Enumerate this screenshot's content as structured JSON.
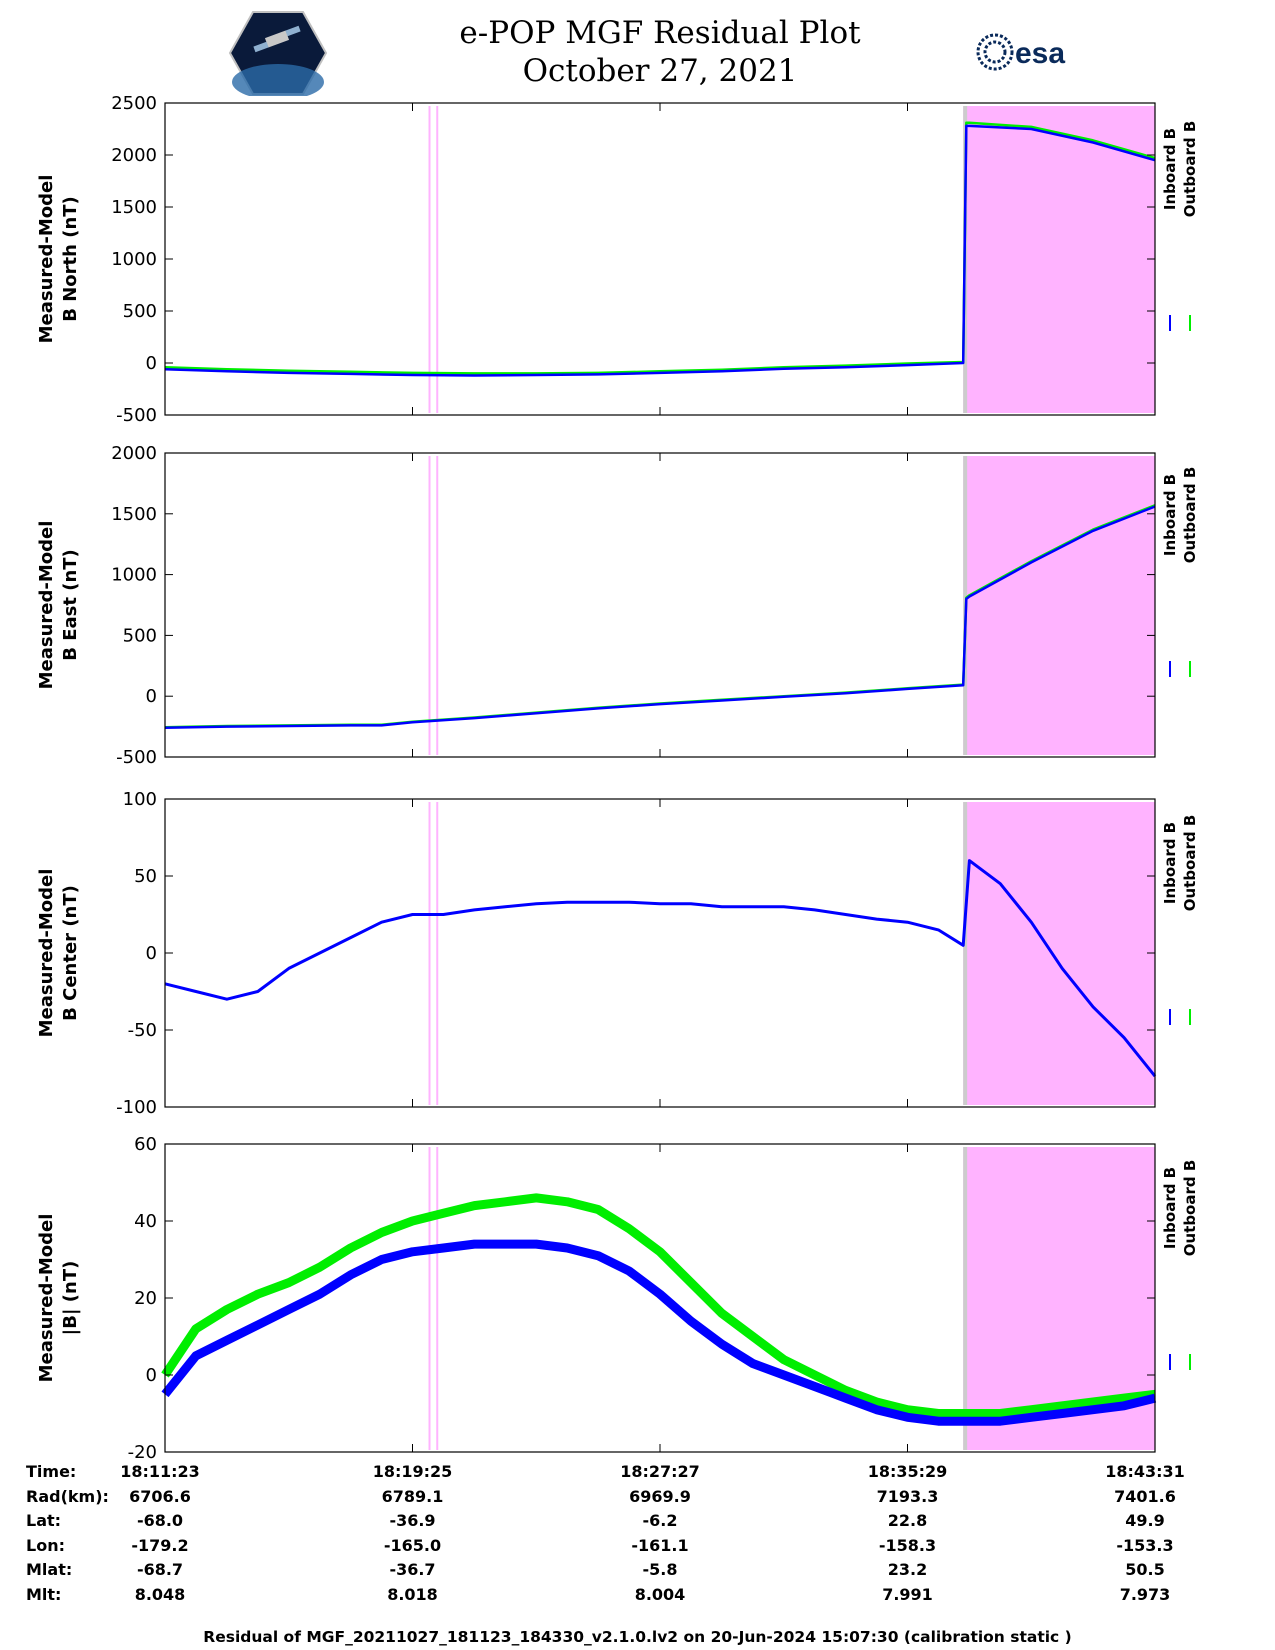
{
  "header": {
    "title": "e-POP MGF Residual Plot",
    "date": "October 27, 2021"
  },
  "logos": {
    "mission": "cassiope-mission-logo",
    "agency": "esa-logo",
    "agency_text": "esa"
  },
  "colors": {
    "inboard": "#0000ff",
    "outboard": "#00ee00",
    "shade": "#ffb3ff",
    "shade_edge": "#cccccc"
  },
  "chart_data": [
    {
      "type": "line",
      "ylabel": [
        "Measured-Model",
        "B North (nT)"
      ],
      "ylim": [
        -500,
        2500
      ],
      "yticks": [
        -500,
        0,
        500,
        1000,
        1500,
        2000,
        2500
      ],
      "legend": [
        "Inboard B",
        "Outboard B"
      ],
      "legend_position": "right",
      "x": [
        0,
        2,
        4,
        6,
        8,
        10,
        12,
        14,
        16,
        18,
        20,
        22,
        24,
        25.8,
        25.9,
        26,
        28,
        30,
        32
      ],
      "series": [
        {
          "name": "Inboard B",
          "values": [
            -60,
            -80,
            -95,
            -105,
            -115,
            -120,
            -115,
            -110,
            -95,
            -80,
            -55,
            -40,
            -20,
            0,
            2280,
            2280,
            2250,
            2120,
            1950
          ]
        },
        {
          "name": "Outboard B",
          "values": [
            -40,
            -60,
            -75,
            -85,
            -95,
            -100,
            -100,
            -95,
            -80,
            -65,
            -40,
            -25,
            -5,
            10,
            2310,
            2310,
            2270,
            2140,
            1970
          ]
        }
      ]
    },
    {
      "type": "line",
      "ylabel": [
        "Measured-Model",
        "B East (nT)"
      ],
      "ylim": [
        -500,
        2000
      ],
      "yticks": [
        -500,
        0,
        500,
        1000,
        1500,
        2000
      ],
      "legend": [
        "Inboard B",
        "Outboard B"
      ],
      "legend_position": "right",
      "x": [
        0,
        2,
        4,
        6,
        7,
        8,
        10,
        12,
        14,
        16,
        18,
        20,
        22,
        24,
        25.8,
        25.9,
        26,
        28,
        30,
        32
      ],
      "series": [
        {
          "name": "Inboard B",
          "values": [
            -260,
            -250,
            -245,
            -240,
            -240,
            -215,
            -180,
            -140,
            -100,
            -65,
            -35,
            -5,
            25,
            60,
            90,
            800,
            820,
            1100,
            1360,
            1560
          ]
        },
        {
          "name": "Outboard B",
          "values": [
            -255,
            -245,
            -240,
            -235,
            -235,
            -210,
            -175,
            -135,
            -95,
            -60,
            -30,
            0,
            30,
            65,
            95,
            810,
            830,
            1110,
            1370,
            1570
          ]
        }
      ]
    },
    {
      "type": "line",
      "ylabel": [
        "Measured-Model",
        "B Center (nT)"
      ],
      "ylim": [
        -100,
        100
      ],
      "yticks": [
        -100,
        -50,
        0,
        50,
        100
      ],
      "legend": [
        "Inboard B",
        "Outboard B"
      ],
      "legend_position": "right",
      "x": [
        0,
        1,
        2,
        3,
        4,
        5,
        6,
        7,
        8,
        9,
        10,
        11,
        12,
        13,
        14,
        15,
        16,
        17,
        18,
        19,
        20,
        21,
        22,
        23,
        24,
        25,
        25.8,
        26,
        27,
        28,
        29,
        30,
        31,
        32
      ],
      "series": [
        {
          "name": "Inboard B",
          "values": [
            -20,
            -25,
            -30,
            -25,
            -10,
            0,
            10,
            20,
            25,
            25,
            28,
            30,
            32,
            33,
            33,
            33,
            32,
            32,
            30,
            30,
            30,
            28,
            25,
            22,
            20,
            15,
            5,
            60,
            45,
            20,
            -10,
            -35,
            -55,
            -80
          ]
        }
      ]
    },
    {
      "type": "line",
      "ylabel": [
        "Measured-Model",
        "|B| (nT)"
      ],
      "ylim": [
        -20,
        60
      ],
      "yticks": [
        -20,
        0,
        20,
        40,
        60
      ],
      "legend": [
        "Inboard B",
        "Outboard B"
      ],
      "legend_position": "right",
      "x": [
        0,
        1,
        2,
        3,
        4,
        5,
        6,
        7,
        8,
        9,
        10,
        11,
        12,
        13,
        14,
        15,
        16,
        17,
        18,
        19,
        20,
        21,
        22,
        23,
        24,
        25,
        26,
        27,
        28,
        29,
        30,
        31,
        32
      ],
      "series": [
        {
          "name": "Inboard B",
          "values": [
            -5,
            5,
            9,
            13,
            17,
            21,
            26,
            30,
            32,
            33,
            34,
            34,
            34,
            33,
            31,
            27,
            21,
            14,
            8,
            3,
            0,
            -3,
            -6,
            -9,
            -11,
            -12,
            -12,
            -12,
            -11,
            -10,
            -9,
            -8,
            -6
          ]
        },
        {
          "name": "Outboard B",
          "values": [
            0,
            12,
            17,
            21,
            24,
            28,
            33,
            37,
            40,
            42,
            44,
            45,
            46,
            45,
            43,
            38,
            32,
            24,
            16,
            10,
            4,
            0,
            -4,
            -7,
            -9,
            -10,
            -10,
            -10,
            -9,
            -8,
            -7,
            -6,
            -5
          ]
        }
      ]
    }
  ],
  "ephemeris": {
    "labels": [
      "Time:",
      "Rad(km):",
      "Lat:",
      "Lon:",
      "Mlat:",
      "Mlt:"
    ],
    "columns": [
      [
        "18:11:23",
        "6706.6",
        "-68.0",
        "-179.2",
        "-68.7",
        "8.048"
      ],
      [
        "18:19:25",
        "6789.1",
        "-36.9",
        "-165.0",
        "-36.7",
        "8.018"
      ],
      [
        "18:27:27",
        "6969.9",
        "-6.2",
        "-161.1",
        "-5.8",
        "8.004"
      ],
      [
        "18:35:29",
        "7193.3",
        "22.8",
        "-158.3",
        "23.2",
        "7.991"
      ],
      [
        "18:43:31",
        "7401.6",
        "49.9",
        "-153.3",
        "50.5",
        "7.973"
      ]
    ]
  },
  "footer": "Residual of MGF_20211027_181123_184330_v2.1.0.lv2 on 20-Jun-2024 15:07:30 (calibration static )"
}
